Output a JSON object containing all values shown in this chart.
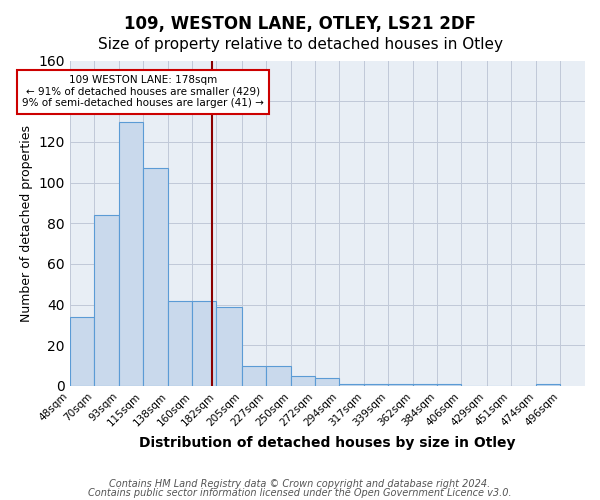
{
  "title1": "109, WESTON LANE, OTLEY, LS21 2DF",
  "title2": "Size of property relative to detached houses in Otley",
  "xlabel": "Distribution of detached houses by size in Otley",
  "ylabel": "Number of detached properties",
  "bin_edges": [
    48,
    70,
    93,
    115,
    138,
    160,
    182,
    205,
    227,
    250,
    272,
    294,
    317,
    339,
    362,
    384,
    406,
    429,
    451,
    474,
    496
  ],
  "bar_heights": [
    34,
    84,
    130,
    107,
    42,
    42,
    39,
    10,
    10,
    5,
    4,
    1,
    1,
    1,
    1,
    1,
    0,
    0,
    0,
    1
  ],
  "bar_color": "#c9d9ec",
  "bar_edge_color": "#5b9bd5",
  "grid_color": "#c0c8d8",
  "bg_color": "#e8eef5",
  "vline_x": 178,
  "vline_color": "#8b0000",
  "annotation_lines": [
    "109 WESTON LANE: 178sqm",
    "← 91% of detached houses are smaller (429)",
    "9% of semi-detached houses are larger (41) →"
  ],
  "annotation_box_color": "#ffffff",
  "annotation_border_color": "#cc0000",
  "ylim": [
    0,
    160
  ],
  "xlim": [
    48,
    519
  ],
  "tick_labels": [
    "48sqm",
    "70sqm",
    "93sqm",
    "115sqm",
    "138sqm",
    "160sqm",
    "182sqm",
    "205sqm",
    "227sqm",
    "250sqm",
    "272sqm",
    "294sqm",
    "317sqm",
    "339sqm",
    "362sqm",
    "384sqm",
    "406sqm",
    "429sqm",
    "451sqm",
    "474sqm",
    "496sqm"
  ],
  "footnote1": "Contains HM Land Registry data © Crown copyright and database right 2024.",
  "footnote2": "Contains public sector information licensed under the Open Government Licence v3.0.",
  "title1_fontsize": 12,
  "title2_fontsize": 11,
  "xlabel_fontsize": 10,
  "ylabel_fontsize": 9,
  "tick_fontsize": 7.5,
  "footnote_fontsize": 7
}
